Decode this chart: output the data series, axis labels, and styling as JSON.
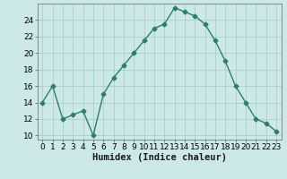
{
  "x": [
    0,
    1,
    2,
    3,
    4,
    5,
    6,
    7,
    8,
    9,
    10,
    11,
    12,
    13,
    14,
    15,
    16,
    17,
    18,
    19,
    20,
    21,
    22,
    23
  ],
  "y": [
    14,
    16,
    12,
    12.5,
    13,
    10,
    15,
    17,
    18.5,
    20,
    21.5,
    23,
    23.5,
    25.5,
    25,
    24.5,
    23.5,
    21.5,
    19,
    16,
    14,
    12,
    11.5,
    10.5
  ],
  "line_color": "#2e7d6e",
  "marker": "D",
  "marker_size": 2.5,
  "bg_color": "#cce8e8",
  "grid_color": "#aacece",
  "xlabel": "Humidex (Indice chaleur)",
  "xlim": [
    -0.5,
    23.5
  ],
  "ylim": [
    9.5,
    26
  ],
  "yticks": [
    10,
    12,
    14,
    16,
    18,
    20,
    22,
    24
  ],
  "xticks": [
    0,
    1,
    2,
    3,
    4,
    5,
    6,
    7,
    8,
    9,
    10,
    11,
    12,
    13,
    14,
    15,
    16,
    17,
    18,
    19,
    20,
    21,
    22,
    23
  ],
  "label_fontsize": 7.5,
  "tick_fontsize": 6.5
}
